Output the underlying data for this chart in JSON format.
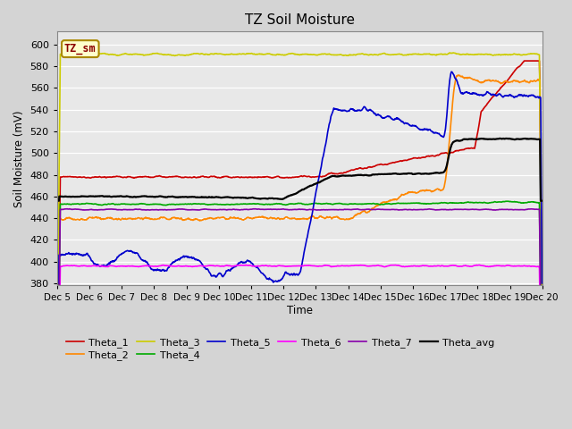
{
  "title": "TZ Soil Moisture",
  "xlabel": "Time",
  "ylabel": "Soil Moisture (mV)",
  "ylim": [
    378,
    612
  ],
  "yticks": [
    380,
    400,
    420,
    440,
    460,
    480,
    500,
    520,
    540,
    560,
    580,
    600
  ],
  "xlim_days": [
    0,
    15
  ],
  "xtick_labels": [
    "Dec 5",
    "Dec 6",
    "Dec 7",
    "Dec 8",
    "Dec 9",
    "Dec 10",
    "Dec 11",
    "Dec 12",
    "Dec 13",
    "Dec 14",
    "Dec 15",
    "Dec 16",
    "Dec 17",
    "Dec 18",
    "Dec 19",
    "Dec 20"
  ],
  "legend_label": "TZ_sm",
  "fig_bg_color": "#d4d4d4",
  "plot_bg_color": "#e8e8e8",
  "grid_color": "white",
  "colors": {
    "Theta_1": "#cc0000",
    "Theta_2": "#ff8800",
    "Theta_3": "#cccc00",
    "Theta_4": "#00aa00",
    "Theta_5": "#0000cc",
    "Theta_6": "#ff00ff",
    "Theta_7": "#8800aa",
    "Theta_avg": "#000000"
  },
  "lw": 1.2
}
